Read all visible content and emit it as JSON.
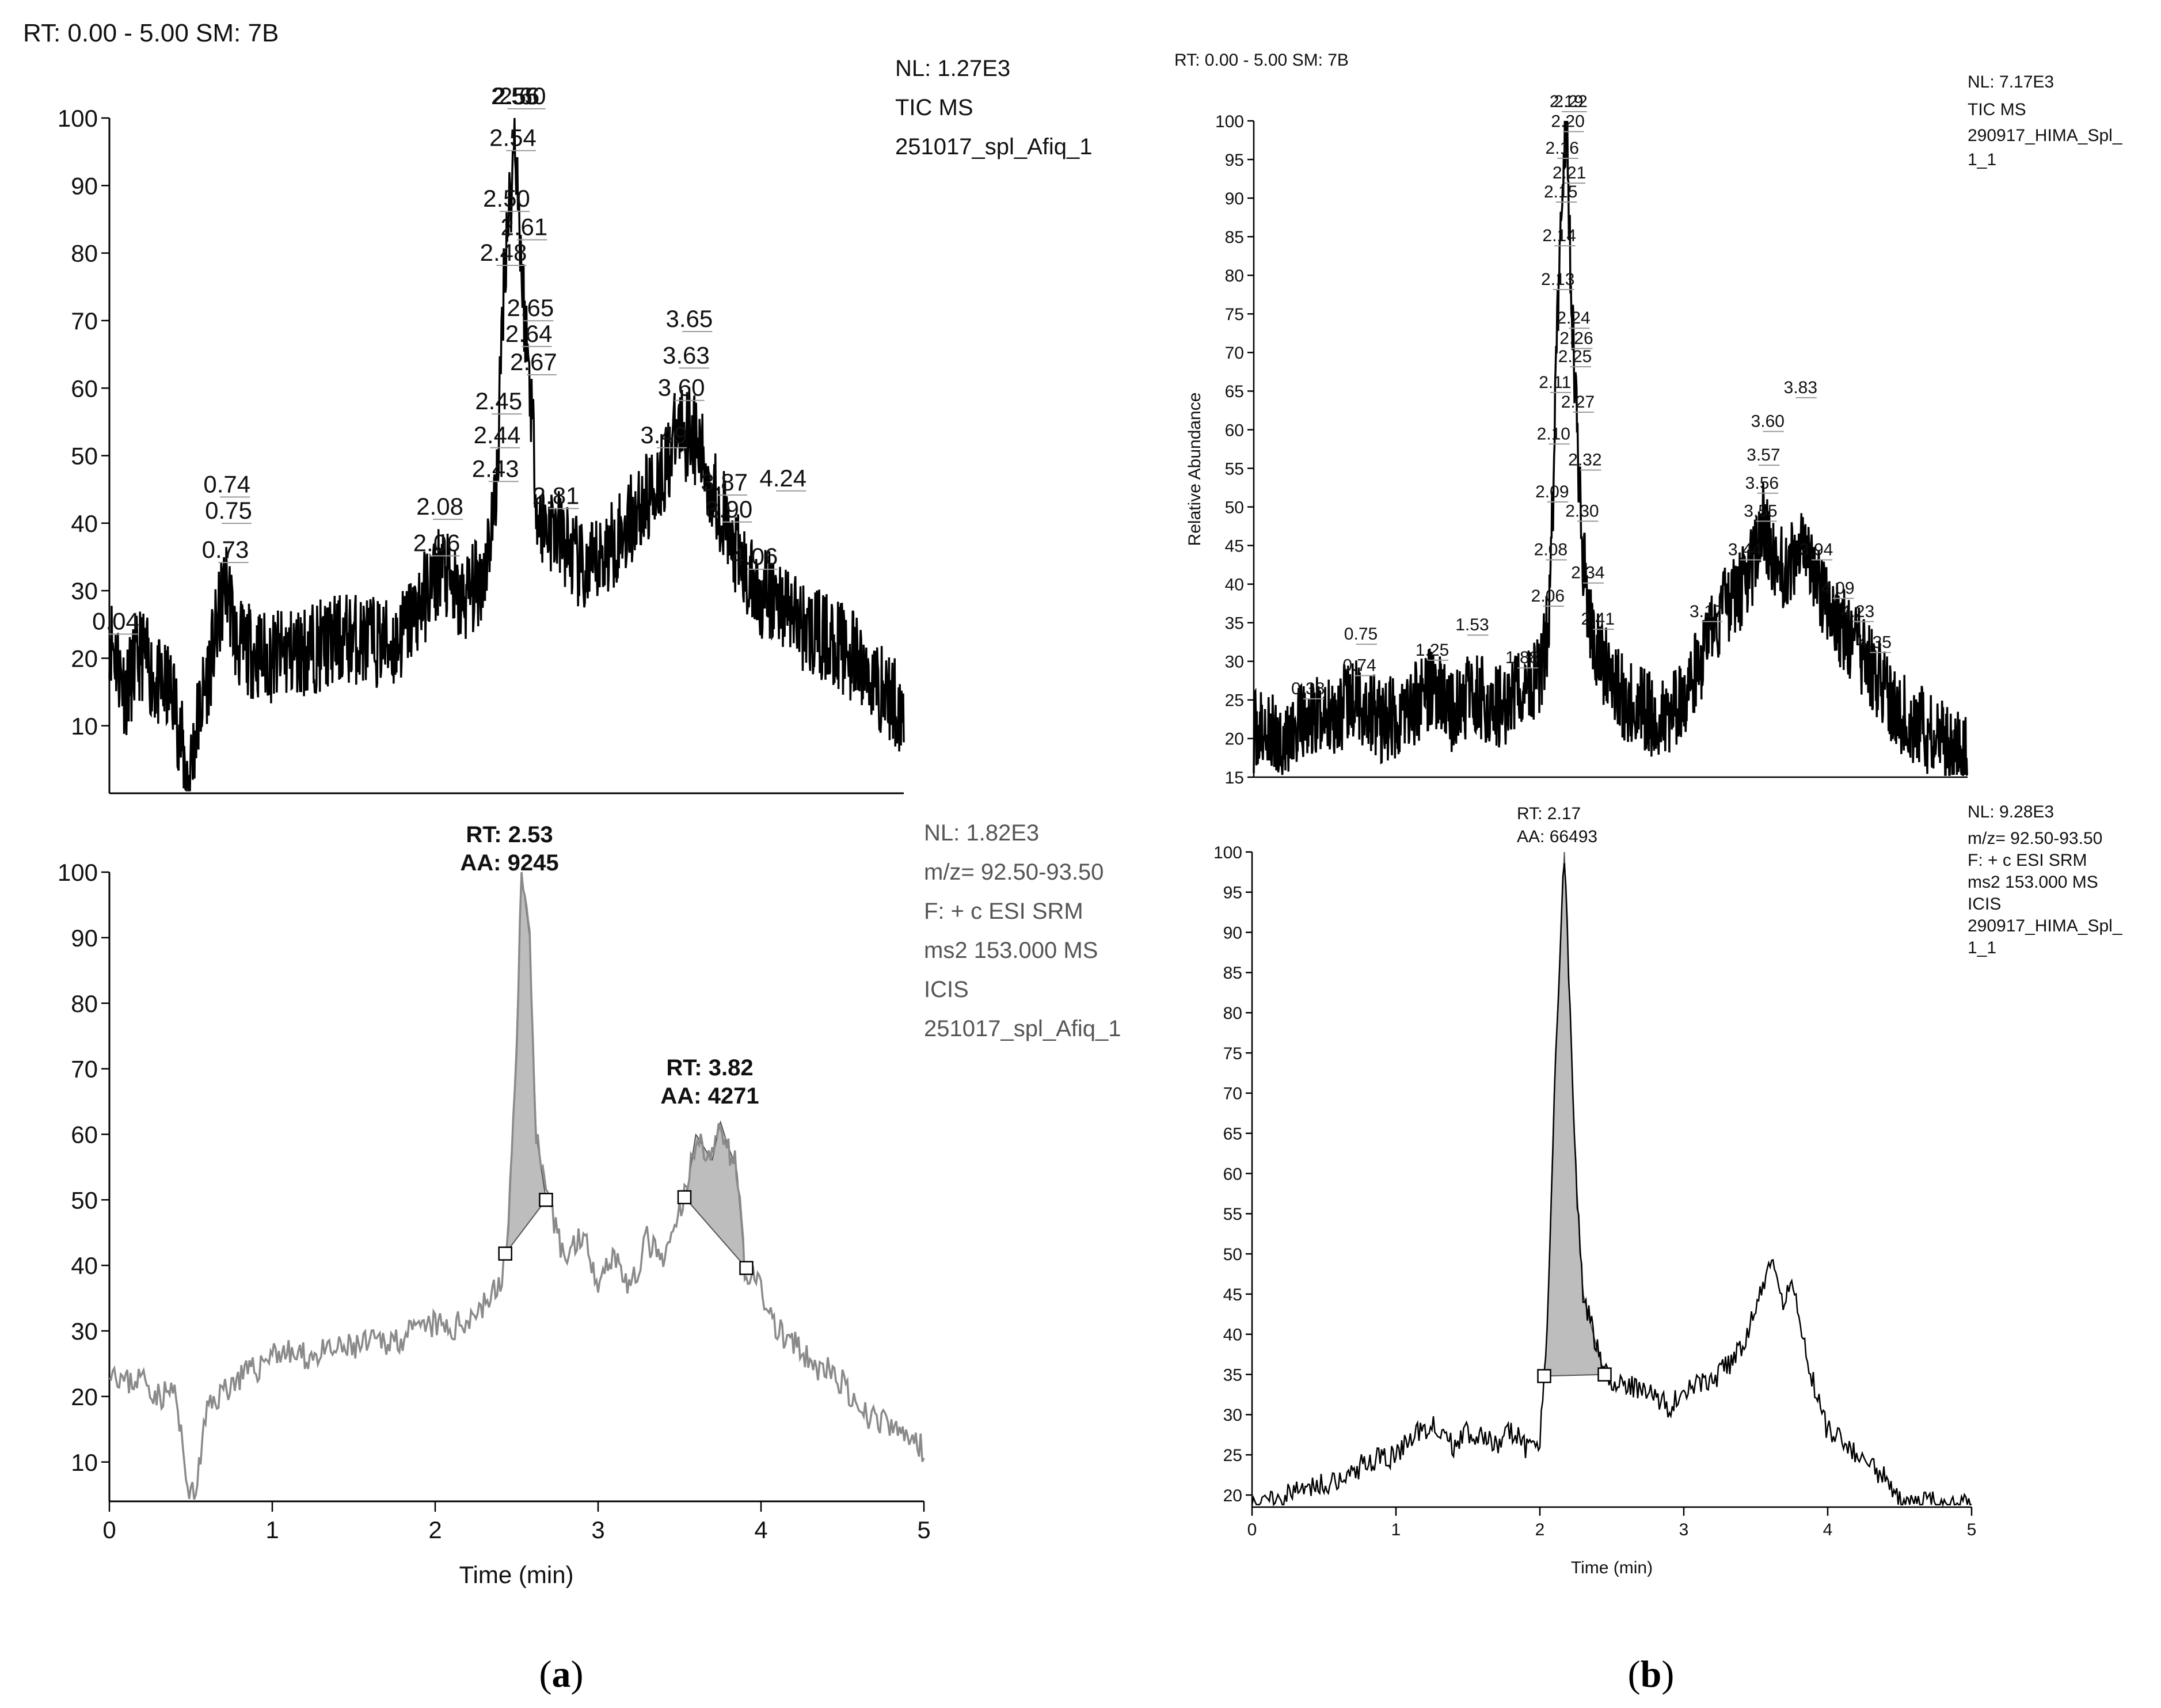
{
  "panels": {
    "a": {
      "label_open": "(",
      "letter": "a",
      "label_close": ")",
      "header": "RT: 0.00 - 5.00   SM: 7B",
      "tic": {
        "info": [
          "NL: 1.27E3",
          "TIC  MS",
          "251017_spl_Afiq_1"
        ],
        "peak_labels": [
          "0.04",
          "0.73",
          "0.75",
          "0.74",
          "2.06",
          "2.08",
          "2.43",
          "2.44",
          "2.45",
          "2.48",
          "2.50",
          "2.54",
          "2.55",
          "2.56",
          "2.60",
          "2.61",
          "2.64",
          "2.65",
          "2.67",
          "2.81",
          "3.49",
          "3.60",
          "3.63",
          "3.65",
          "3.87",
          "3.90",
          "4.06",
          "4.24"
        ],
        "y_ticks": [
          "10",
          "20",
          "30",
          "40",
          "50",
          "60",
          "70",
          "80",
          "90",
          "100"
        ]
      },
      "srm": {
        "info": [
          "NL: 1.82E3",
          "m/z= 92.50-93.50",
          "F: + c ESI SRM",
          "ms2 153.000   MS",
          " ICIS",
          "251017_spl_Afiq_1"
        ],
        "peak1": {
          "rt": "RT: 2.53",
          "aa": "AA: 9245"
        },
        "peak2": {
          "rt": "RT: 3.82",
          "aa": "AA: 4271"
        },
        "y_ticks": [
          "10",
          "20",
          "30",
          "40",
          "50",
          "60",
          "70",
          "80",
          "90",
          "100"
        ],
        "x_ticks": [
          "0",
          "1",
          "2",
          "3",
          "4",
          "5"
        ],
        "x_label": "Time (min)"
      }
    },
    "b": {
      "label_open": "(",
      "letter": "b",
      "label_close": ")",
      "header": "RT: 0.00 - 5.00   SM: 7B",
      "tic": {
        "info": [
          "NL: 7.17E3",
          "TIC  MS",
          "290917_HIMA_Spl_",
          "1_1"
        ],
        "y_label": "Relative Abundance",
        "peak_labels": [
          "0.38",
          "0.74",
          "0.75",
          "1.25",
          "1.53",
          "1.88",
          "2.06",
          "2.08",
          "2.09",
          "2.10",
          "2.11",
          "2.13",
          "2.14",
          "2.15",
          "2.16",
          "2.19",
          "2.20",
          "2.21",
          "2.22",
          "2.24",
          "2.25",
          "2.26",
          "2.27",
          "2.30",
          "2.32",
          "2.34",
          "2.41",
          "3.17",
          "3.44",
          "3.55",
          "3.56",
          "3.57",
          "3.60",
          "3.83",
          "3.94",
          "4.09",
          "4.23",
          "4.35"
        ],
        "y_ticks": [
          "15",
          "20",
          "25",
          "30",
          "35",
          "40",
          "45",
          "50",
          "55",
          "60",
          "65",
          "70",
          "75",
          "80",
          "85",
          "90",
          "95",
          "100"
        ]
      },
      "srm": {
        "info": [
          "NL: 9.28E3",
          "m/z= 92.50-93.50",
          "F: + c ESI SRM",
          "ms2 153.000   MS",
          "ICIS",
          "290917_HIMA_Spl_",
          "1_1"
        ],
        "peak1": {
          "rt": "RT: 2.17",
          "aa": "AA: 66493"
        },
        "y_ticks": [
          "20",
          "25",
          "30",
          "35",
          "40",
          "45",
          "50",
          "55",
          "60",
          "65",
          "70",
          "75",
          "80",
          "85",
          "90",
          "95",
          "100"
        ],
        "x_ticks": [
          "0",
          "1",
          "2",
          "3",
          "4",
          "5"
        ],
        "x_label": "Time (min)"
      }
    }
  },
  "chart_data": [
    {
      "id": "a-tic",
      "type": "line",
      "title": "TIC MS 251017_spl_Afiq_1",
      "xlabel": "",
      "ylabel": "",
      "xlim": [
        0,
        5
      ],
      "ylim": [
        0,
        100
      ],
      "series": [
        {
          "name": "TIC",
          "x": [
            0.0,
            0.1,
            0.2,
            0.3,
            0.4,
            0.47,
            0.5,
            0.55,
            0.65,
            0.73,
            0.75,
            0.8,
            1.0,
            1.2,
            1.5,
            1.8,
            2.06,
            2.08,
            2.2,
            2.35,
            2.43,
            2.45,
            2.48,
            2.5,
            2.54,
            2.55,
            2.56,
            2.6,
            2.65,
            2.7,
            2.81,
            3.0,
            3.2,
            3.4,
            3.49,
            3.6,
            3.63,
            3.65,
            3.75,
            3.87,
            3.9,
            4.06,
            4.24,
            4.4,
            4.6,
            4.8,
            5.0
          ],
          "y": [
            24,
            15,
            21,
            16,
            15,
            5,
            2,
            10,
            21,
            31,
            30,
            22,
            20,
            21,
            23,
            22,
            32,
            34,
            28,
            32,
            43,
            53,
            75,
            83,
            92,
            100,
            95,
            75,
            60,
            40,
            39,
            32,
            38,
            44,
            48,
            55,
            53,
            55,
            48,
            41,
            37,
            30,
            28,
            24,
            22,
            17,
            12
          ]
        }
      ]
    },
    {
      "id": "a-srm",
      "type": "line",
      "title": "m/z= 92.50-93.50 F: + c ESI SRM ms2 153.000 MS ICIS 251017_spl_Afiq_1",
      "xlabel": "Time (min)",
      "ylabel": "",
      "xlim": [
        0,
        5
      ],
      "ylim": [
        4,
        100
      ],
      "series": [
        {
          "name": "SRM",
          "x": [
            0.0,
            0.1,
            0.2,
            0.3,
            0.4,
            0.47,
            0.52,
            0.6,
            0.7,
            0.8,
            0.9,
            1.0,
            1.2,
            1.4,
            1.6,
            1.8,
            2.0,
            2.1,
            2.2,
            2.3,
            2.4,
            2.45,
            2.5,
            2.53,
            2.58,
            2.62,
            2.68,
            2.8,
            2.9,
            3.0,
            3.1,
            3.2,
            3.3,
            3.4,
            3.5,
            3.55,
            3.6,
            3.65,
            3.7,
            3.75,
            3.8,
            3.85,
            3.9,
            4.0,
            4.1,
            4.2,
            4.3,
            4.4,
            4.5,
            4.6,
            4.7,
            4.8,
            4.9,
            5.0
          ],
          "y": [
            25,
            22,
            23,
            20,
            21,
            8,
            4,
            18,
            21,
            23,
            24,
            27,
            26,
            27,
            28,
            29,
            31,
            30,
            32,
            34,
            37,
            45,
            75,
            100,
            90,
            60,
            50,
            41,
            45,
            38,
            42,
            36,
            44,
            40,
            48,
            52,
            60,
            58,
            56,
            62,
            58,
            55,
            40,
            36,
            30,
            28,
            25,
            24,
            22,
            17,
            17,
            15,
            14,
            12
          ]
        }
      ],
      "integrated_peaks": [
        {
          "rt": 2.53,
          "area": 9245,
          "start": 2.43,
          "end": 2.68
        },
        {
          "rt": 3.82,
          "area": 4271,
          "start": 3.53,
          "end": 3.91
        }
      ]
    },
    {
      "id": "b-tic",
      "type": "line",
      "title": "TIC MS 290917_HIMA_Spl_1_1",
      "xlabel": "",
      "ylabel": "Relative Abundance",
      "xlim": [
        0,
        5
      ],
      "ylim": [
        15,
        100
      ],
      "series": [
        {
          "name": "TIC",
          "x": [
            0.0,
            0.2,
            0.38,
            0.5,
            0.74,
            0.9,
            1.1,
            1.25,
            1.4,
            1.53,
            1.7,
            1.88,
            2.0,
            2.06,
            2.08,
            2.1,
            2.13,
            2.16,
            2.19,
            2.22,
            2.25,
            2.3,
            2.35,
            2.41,
            2.6,
            2.8,
            3.0,
            3.17,
            3.3,
            3.44,
            3.55,
            3.57,
            3.6,
            3.7,
            3.83,
            3.94,
            4.09,
            4.23,
            4.35,
            4.5,
            4.7,
            4.9,
            5.0
          ],
          "y": [
            21,
            20,
            22,
            23,
            25,
            22,
            24,
            27,
            23,
            26,
            24,
            26,
            28,
            34,
            40,
            55,
            75,
            92,
            100,
            80,
            65,
            45,
            35,
            31,
            25,
            23,
            24,
            32,
            37,
            40,
            45,
            48,
            46,
            42,
            44,
            40,
            35,
            32,
            28,
            24,
            21,
            19,
            17
          ]
        }
      ]
    },
    {
      "id": "b-srm",
      "type": "line",
      "title": "m/z= 92.50-93.50 F: + c ESI SRM ms2 153.000 MS ICIS 290917_HIMA_Spl_1_1",
      "xlabel": "Time (min)",
      "ylabel": "",
      "xlim": [
        0,
        5
      ],
      "ylim": [
        18.5,
        100
      ],
      "series": [
        {
          "name": "SRM",
          "x": [
            0.0,
            0.2,
            0.4,
            0.6,
            0.8,
            1.0,
            1.1,
            1.25,
            1.4,
            1.5,
            1.6,
            1.7,
            1.8,
            1.9,
            2.0,
            2.05,
            2.1,
            2.15,
            2.17,
            2.2,
            2.25,
            2.3,
            2.4,
            2.45,
            2.55,
            2.7,
            2.9,
            3.0,
            3.2,
            3.4,
            3.5,
            3.6,
            3.65,
            3.7,
            3.75,
            3.8,
            3.9,
            4.0,
            4.2,
            4.4,
            4.5,
            4.6,
            4.8,
            5.0
          ],
          "y": [
            19,
            20,
            21,
            22,
            24,
            25,
            27,
            29,
            26,
            28,
            27,
            26,
            28,
            26,
            27,
            40,
            70,
            92,
            100,
            85,
            60,
            45,
            38,
            35,
            34,
            33,
            31,
            33,
            34,
            38,
            43,
            49,
            46,
            44,
            48,
            42,
            34,
            28,
            25,
            22,
            19,
            19,
            19,
            19
          ]
        }
      ],
      "integrated_peaks": [
        {
          "rt": 2.17,
          "area": 66493,
          "start": 2.03,
          "end": 2.45
        }
      ]
    }
  ]
}
